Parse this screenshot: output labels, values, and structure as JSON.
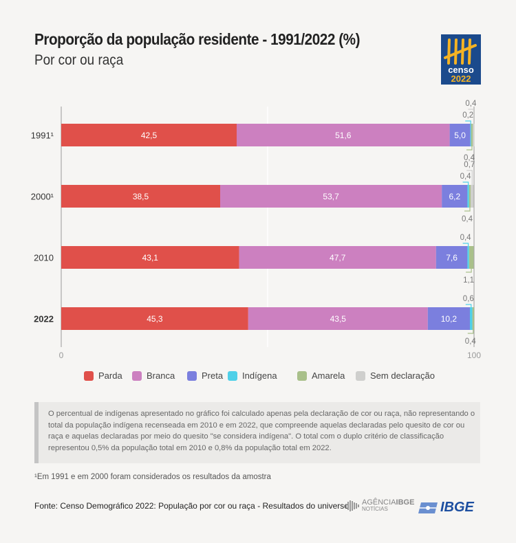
{
  "header": {
    "title": "Proporção da população residente - 1991/2022 (%)",
    "subtitle": "Por cor ou raça",
    "logo_text": [
      "censo",
      "2022"
    ]
  },
  "chart_data": {
    "type": "bar",
    "orientation": "horizontal",
    "stacked": true,
    "categories": [
      "1991¹",
      "2000¹",
      "2010",
      "2022"
    ],
    "xlim": [
      0,
      100
    ],
    "x_ticks": [
      "0",
      "100"
    ],
    "grid": true,
    "legend_position": "bottom",
    "series": [
      {
        "name": "Parda",
        "color": "#e0504a",
        "values": [
          42.5,
          38.5,
          43.1,
          45.3
        ],
        "labels": [
          "42,5",
          "38,5",
          "43,1",
          "45,3"
        ]
      },
      {
        "name": "Branca",
        "color": "#cc80c0",
        "values": [
          51.6,
          53.7,
          47.7,
          43.5
        ],
        "labels": [
          "51,6",
          "53,7",
          "47,7",
          "43,5"
        ]
      },
      {
        "name": "Preta",
        "color": "#7b7fde",
        "values": [
          5.0,
          6.2,
          7.6,
          10.2
        ],
        "labels": [
          "5,0",
          "6,2",
          "7,6",
          "10,2"
        ]
      },
      {
        "name": "Indígena",
        "color": "#4fd0e8",
        "values": [
          0.2,
          0.4,
          0.4,
          0.6
        ],
        "labels": [
          "0,2",
          "0,4",
          "0,4",
          "0,6"
        ]
      },
      {
        "name": "Amarela",
        "color": "#a9c08a",
        "values": [
          0.4,
          0.4,
          1.1,
          0.4
        ],
        "labels": [
          "0,4",
          "0,4",
          "1,1",
          "0,4"
        ]
      },
      {
        "name": "Sem declaração",
        "color": "#cfcfcd",
        "values": [
          0.4,
          0.7,
          0,
          0
        ],
        "labels": [
          "0,4",
          "0,7",
          "",
          ""
        ]
      }
    ]
  },
  "note": "O percentual de indígenas apresentado no gráfico foi calculado apenas pela declaração de cor ou raça, não representando o total da população indígena recenseada em 2010 e em 2022, que compreende aquelas declaradas pelo quesito de cor ou raça e aquelas declaradas por meio do quesito \"se considera indígena\". O total com o duplo critério de classificação representou 0,5% da população total em 2010 e 0,8% da população total em 2022.",
  "footnote": "¹Em 1991 e em 2000 foram considerados os resultados da amostra",
  "source": "Fonte: Censo Demográfico 2022: População por cor ou raça - Resultados do universo",
  "brands": {
    "agencia": "AGÊNCIA",
    "agencia_bold": "IBGE",
    "agencia_sub": "NOTÍCIAS",
    "ibge": "IBGE"
  }
}
